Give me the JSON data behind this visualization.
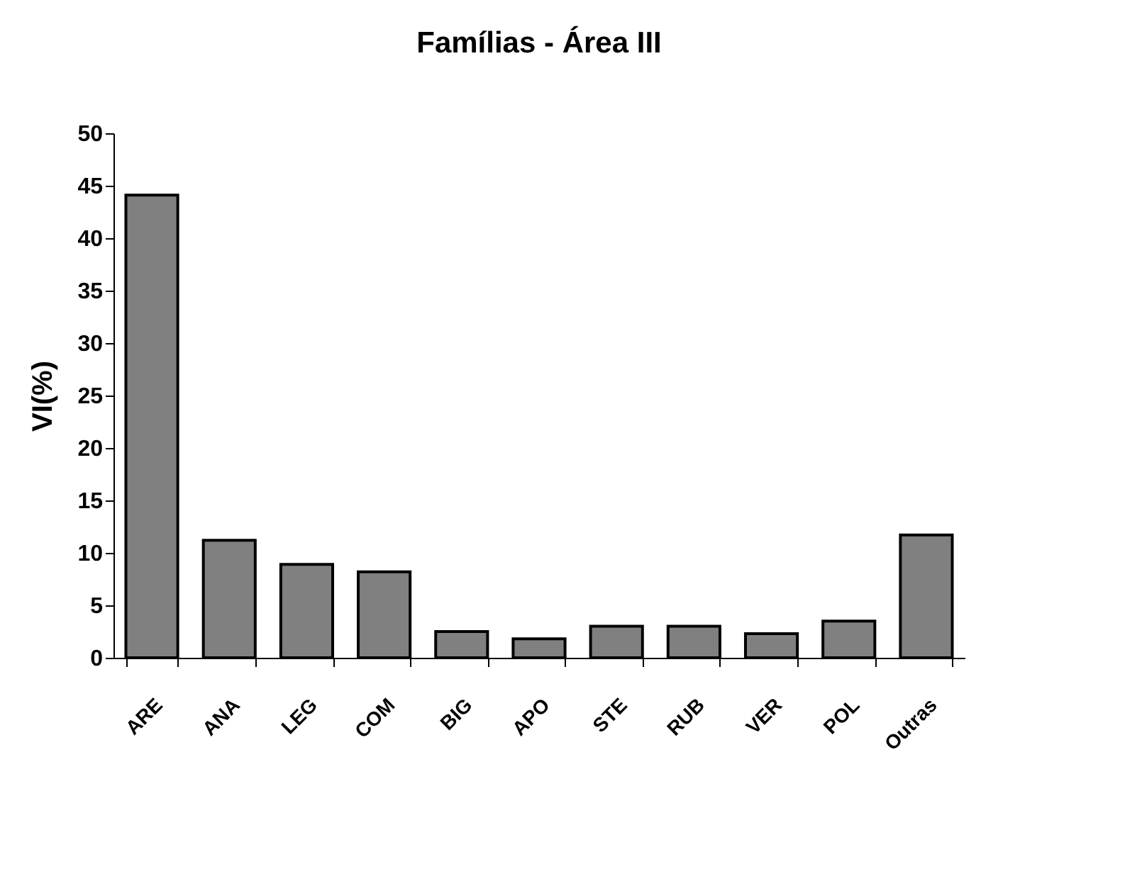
{
  "chart_data": {
    "type": "bar",
    "title": "Famílias - Área III",
    "ylabel": "VI(%)",
    "categories": [
      "ARE",
      "ANA",
      "LEG",
      "COM",
      "BIG",
      "APO",
      "STE",
      "RUB",
      "VER",
      "POL",
      "Outras"
    ],
    "values": [
      44.1,
      11.2,
      8.9,
      8.2,
      2.5,
      1.8,
      3.0,
      3.0,
      2.3,
      3.5,
      11.7
    ],
    "color": "#808080",
    "ylim": [
      0,
      50
    ],
    "yticks": [
      0,
      5,
      10,
      15,
      20,
      25,
      30,
      35,
      40,
      45,
      50
    ],
    "grid": false
  }
}
